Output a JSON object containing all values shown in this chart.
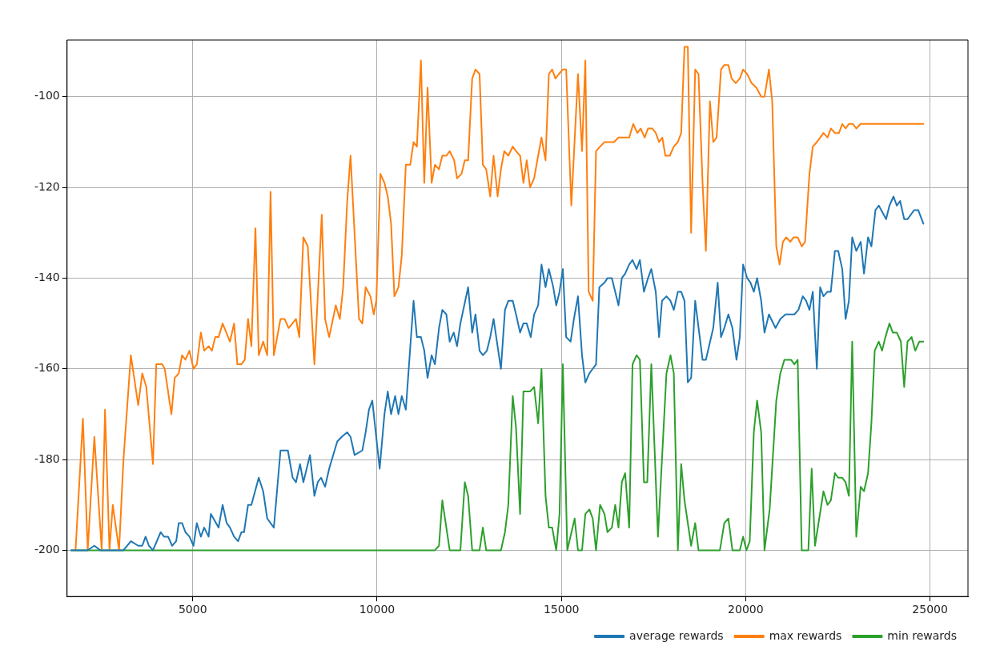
{
  "chart_data": {
    "type": "line",
    "xlim": [
      1590,
      26030
    ],
    "ylim": [
      -210.2,
      -87.5
    ],
    "xticks": [
      5000,
      10000,
      15000,
      20000,
      25000
    ],
    "yticks": [
      -200,
      -180,
      -160,
      -140,
      -120,
      -100
    ],
    "grid": true,
    "legend": "bottom right",
    "series": [
      {
        "name": "average rewards",
        "color": "#1f77b4",
        "x": [
          1700,
          1860,
          2000,
          2150,
          2330,
          2490,
          2650,
          2760,
          3000,
          3120,
          3320,
          3520,
          3630,
          3720,
          3810,
          3920,
          4130,
          4220,
          4330,
          4440,
          4550,
          4620,
          4710,
          4800,
          4910,
          5020,
          5110,
          5220,
          5310,
          5430,
          5490,
          5700,
          5810,
          5920,
          6010,
          6120,
          6230,
          6320,
          6390,
          6500,
          6590,
          6790,
          6910,
          7020,
          7200,
          7380,
          7580,
          7710,
          7800,
          7910,
          8000,
          8180,
          8300,
          8390,
          8480,
          8590,
          8700,
          8810,
          8920,
          9040,
          9190,
          9280,
          9390,
          9600,
          9690,
          9780,
          9870,
          10070,
          10200,
          10290,
          10380,
          10490,
          10580,
          10670,
          10780,
          10990,
          11080,
          11190,
          11280,
          11370,
          11480,
          11570,
          11680,
          11770,
          11880,
          11970,
          12080,
          12170,
          12260,
          12470,
          12580,
          12670,
          12780,
          12870,
          12980,
          13070,
          13160,
          13360,
          13470,
          13560,
          13680,
          13770,
          13880,
          13970,
          14060,
          14170,
          14260,
          14370,
          14460,
          14570,
          14660,
          14780,
          14860,
          14950,
          15040,
          15130,
          15250,
          15340,
          15450,
          15560,
          15650,
          15760,
          15850,
          15940,
          16030,
          16170,
          16250,
          16370,
          16550,
          16640,
          16730,
          16840,
          16930,
          17040,
          17130,
          17240,
          17350,
          17440,
          17560,
          17650,
          17730,
          17850,
          17960,
          18050,
          18160,
          18250,
          18340,
          18430,
          18520,
          18630,
          18830,
          18920,
          19120,
          19240,
          19330,
          19420,
          19530,
          19640,
          19750,
          19840,
          19930,
          20040,
          20130,
          20220,
          20310,
          20420,
          20510,
          20630,
          20690,
          20810,
          20940,
          21080,
          21140,
          21230,
          21320,
          21430,
          21550,
          21640,
          21730,
          21820,
          21930,
          22020,
          22110,
          22220,
          22310,
          22420,
          22510,
          22620,
          22710,
          22800,
          22890,
          23000,
          23120,
          23210,
          23320,
          23410,
          23520,
          23610,
          23810,
          23900,
          24010,
          24100,
          24190,
          24300,
          24390,
          24570,
          24680,
          24820
        ],
        "values": [
          -200,
          -200,
          -200,
          -200,
          -199,
          -200,
          -200,
          -200,
          -200,
          -200,
          -198,
          -199,
          -199,
          -197,
          -199,
          -200,
          -196,
          -197,
          -197,
          -199,
          -198,
          -194,
          -194,
          -196,
          -197,
          -199,
          -194,
          -197,
          -195,
          -197,
          -192,
          -195,
          -190,
          -194,
          -195,
          -197,
          -198,
          -196,
          -196,
          -190,
          -190,
          -184,
          -187,
          -193,
          -195,
          -178,
          -178,
          -184,
          -185,
          -181,
          -185,
          -179,
          -188,
          -185,
          -184,
          -186,
          -182,
          -179,
          -176,
          -175,
          -174,
          -175,
          -179,
          -178,
          -174,
          -169,
          -167,
          -182,
          -170,
          -165,
          -170,
          -166,
          -170,
          -166,
          -169,
          -145,
          -153,
          -153,
          -156,
          -162,
          -157,
          -159,
          -151,
          -147,
          -148,
          -154,
          -152,
          -155,
          -150,
          -142,
          -152,
          -148,
          -156,
          -157,
          -156,
          -153,
          -149,
          -160,
          -147,
          -145,
          -145,
          -148,
          -152,
          -150,
          -150,
          -153,
          -148,
          -146,
          -137,
          -142,
          -138,
          -142,
          -146,
          -143,
          -138,
          -153,
          -154,
          -149,
          -144,
          -157,
          -163,
          -161,
          -160,
          -159,
          -142,
          -141,
          -140,
          -140,
          -146,
          -140,
          -139,
          -137,
          -136,
          -138,
          -136,
          -143,
          -140,
          -138,
          -143,
          -153,
          -145,
          -144,
          -145,
          -147,
          -143,
          -143,
          -145,
          -163,
          -162,
          -145,
          -158,
          -158,
          -151,
          -141,
          -153,
          -151,
          -148,
          -151,
          -158,
          -153,
          -137,
          -140,
          -141,
          -143,
          -140,
          -145,
          -152,
          -148,
          -149,
          -151,
          -149,
          -148,
          -148,
          -148,
          -148,
          -147,
          -144,
          -145,
          -147,
          -143,
          -160,
          -142,
          -144,
          -143,
          -143,
          -134,
          -134,
          -138,
          -149,
          -145,
          -131,
          -134,
          -132,
          -139,
          -131,
          -133,
          -125,
          -124,
          -127,
          -124,
          -122,
          -124,
          -123,
          -127,
          -127,
          -125,
          -125,
          -128
        ]
      },
      {
        "name": "max rewards",
        "color": "#ff7f0e",
        "x": [
          1820,
          2020,
          2150,
          2330,
          2530,
          2620,
          2740,
          2830,
          3000,
          3120,
          3320,
          3520,
          3630,
          3740,
          3920,
          4010,
          4170,
          4240,
          4420,
          4510,
          4620,
          4710,
          4800,
          4910,
          5020,
          5110,
          5220,
          5310,
          5430,
          5520,
          5610,
          5700,
          5810,
          6010,
          6120,
          6210,
          6320,
          6410,
          6500,
          6590,
          6700,
          6790,
          6910,
          7020,
          7110,
          7200,
          7380,
          7490,
          7600,
          7800,
          7890,
          8000,
          8120,
          8300,
          8500,
          8590,
          8700,
          8880,
          8990,
          9080,
          9190,
          9280,
          9510,
          9600,
          9690,
          9820,
          9910,
          9980,
          10090,
          10200,
          10290,
          10380,
          10470,
          10580,
          10670,
          10780,
          10900,
          10990,
          11080,
          11190,
          11280,
          11370,
          11480,
          11570,
          11680,
          11770,
          11880,
          11970,
          12090,
          12170,
          12290,
          12380,
          12470,
          12580,
          12670,
          12780,
          12870,
          12960,
          13070,
          13160,
          13270,
          13360,
          13450,
          13560,
          13680,
          13770,
          13880,
          13970,
          14060,
          14150,
          14260,
          14370,
          14460,
          14570,
          14660,
          14750,
          14840,
          14930,
          15040,
          15130,
          15270,
          15450,
          15560,
          15650,
          15740,
          15850,
          15940,
          16050,
          16170,
          16280,
          16430,
          16550,
          16660,
          16840,
          16950,
          17060,
          17150,
          17260,
          17350,
          17470,
          17560,
          17650,
          17740,
          17820,
          17940,
          18050,
          18160,
          18250,
          18340,
          18430,
          18520,
          18630,
          18720,
          18830,
          18920,
          19030,
          19120,
          19210,
          19330,
          19420,
          19530,
          19620,
          19730,
          19840,
          19930,
          20040,
          20160,
          20290,
          20420,
          20510,
          20630,
          20720,
          20830,
          20920,
          21010,
          21100,
          21210,
          21300,
          21410,
          21520,
          21610,
          21730,
          21820,
          21930,
          22020,
          22110,
          22220,
          22310,
          22420,
          22530,
          22620,
          22710,
          22800,
          22910,
          23000,
          23120,
          24820
        ],
        "values": [
          -200,
          -171,
          -200,
          -175,
          -200,
          -169,
          -200,
          -190,
          -200,
          -180,
          -157,
          -168,
          -161,
          -164,
          -181,
          -159,
          -159,
          -160,
          -170,
          -162,
          -161,
          -157,
          -158,
          -156,
          -160,
          -159,
          -152,
          -156,
          -155,
          -156,
          -153,
          -153,
          -150,
          -154,
          -150,
          -159,
          -159,
          -158,
          -149,
          -155,
          -129,
          -157,
          -154,
          -157,
          -121,
          -157,
          -149,
          -149,
          -151,
          -149,
          -153,
          -131,
          -133,
          -159,
          -126,
          -149,
          -153,
          -146,
          -149,
          -142,
          -123,
          -113,
          -149,
          -150,
          -142,
          -144,
          -148,
          -145,
          -117,
          -119,
          -122,
          -128,
          -144,
          -142,
          -135,
          -115,
          -115,
          -110,
          -111,
          -92,
          -119,
          -98,
          -119,
          -115,
          -116,
          -113,
          -113,
          -112,
          -114,
          -118,
          -117,
          -114,
          -114,
          -96,
          -94,
          -95,
          -115,
          -116,
          -122,
          -113,
          -122,
          -116,
          -112,
          -113,
          -111,
          -112,
          -113,
          -119,
          -114,
          -120,
          -118,
          -113,
          -109,
          -114,
          -95,
          -94,
          -96,
          -95,
          -94,
          -94,
          -124,
          -95,
          -112,
          -92,
          -143,
          -145,
          -112,
          -111,
          -110,
          -110,
          -110,
          -109,
          -109,
          -109,
          -106,
          -108,
          -107,
          -109,
          -107,
          -107,
          -108,
          -110,
          -109,
          -113,
          -113,
          -111,
          -110,
          -108,
          -89,
          -89,
          -130,
          -94,
          -95,
          -119,
          -134,
          -101,
          -110,
          -109,
          -94,
          -93,
          -93,
          -96,
          -97,
          -96,
          -94,
          -95,
          -97,
          -98,
          -100,
          -100,
          -94,
          -101,
          -133,
          -137,
          -132,
          -131,
          -132,
          -131,
          -131,
          -133,
          -132,
          -117,
          -111,
          -110,
          -109,
          -108,
          -109,
          -107,
          -108,
          -108,
          -106,
          -107,
          -106,
          -106,
          -107,
          -106,
          -106
        ]
      },
      {
        "name": "min rewards",
        "color": "#2ca02c",
        "x": [
          1700,
          11570,
          11680,
          11770,
          11970,
          12260,
          12380,
          12470,
          12580,
          12780,
          12870,
          12960,
          13360,
          13470,
          13560,
          13680,
          13770,
          13880,
          13970,
          14150,
          14260,
          14370,
          14460,
          14570,
          14660,
          14750,
          14860,
          14950,
          15040,
          15160,
          15360,
          15450,
          15560,
          15650,
          15760,
          15850,
          15940,
          16050,
          16170,
          16250,
          16370,
          16460,
          16550,
          16640,
          16730,
          16840,
          16930,
          17040,
          17130,
          17240,
          17330,
          17440,
          17620,
          17850,
          17960,
          18050,
          18160,
          18250,
          18340,
          18520,
          18630,
          18720,
          19300,
          19420,
          19530,
          19640,
          19840,
          19930,
          20020,
          20110,
          20220,
          20310,
          20420,
          20510,
          20650,
          20830,
          20940,
          21050,
          21230,
          21320,
          21410,
          21520,
          21700,
          21790,
          21880,
          22110,
          22220,
          22310,
          22420,
          22510,
          22620,
          22710,
          22800,
          22890,
          23000,
          23120,
          23210,
          23320,
          23410,
          23500,
          23610,
          23700,
          23790,
          23900,
          23990,
          24100,
          24210,
          24300,
          24390,
          24500,
          24600,
          24710,
          24820
        ],
        "values": [
          -200,
          -200,
          -199,
          -189,
          -200,
          -200,
          -185,
          -188,
          -200,
          -200,
          -195,
          -200,
          -200,
          -196,
          -190,
          -166,
          -173,
          -192,
          -165,
          -165,
          -164,
          -172,
          -160,
          -188,
          -195,
          -195,
          -200,
          -192,
          -159,
          -200,
          -193,
          -200,
          -200,
          -192,
          -191,
          -193,
          -200,
          -190,
          -192,
          -196,
          -195,
          -190,
          -195,
          -185,
          -183,
          -195,
          -159,
          -157,
          -158,
          -185,
          -185,
          -159,
          -197,
          -161,
          -157,
          -161,
          -200,
          -181,
          -189,
          -199,
          -194,
          -200,
          -200,
          -194,
          -193,
          -200,
          -200,
          -197,
          -200,
          -198,
          -174,
          -167,
          -174,
          -200,
          -191,
          -167,
          -161,
          -158,
          -158,
          -159,
          -158,
          -200,
          -200,
          -182,
          -199,
          -187,
          -190,
          -189,
          -183,
          -184,
          -184,
          -185,
          -188,
          -154,
          -197,
          -186,
          -187,
          -183,
          -172,
          -156,
          -154,
          -156,
          -153,
          -150,
          -152,
          -152,
          -154,
          -164,
          -154,
          -153,
          -156,
          -154,
          -154
        ]
      }
    ]
  }
}
